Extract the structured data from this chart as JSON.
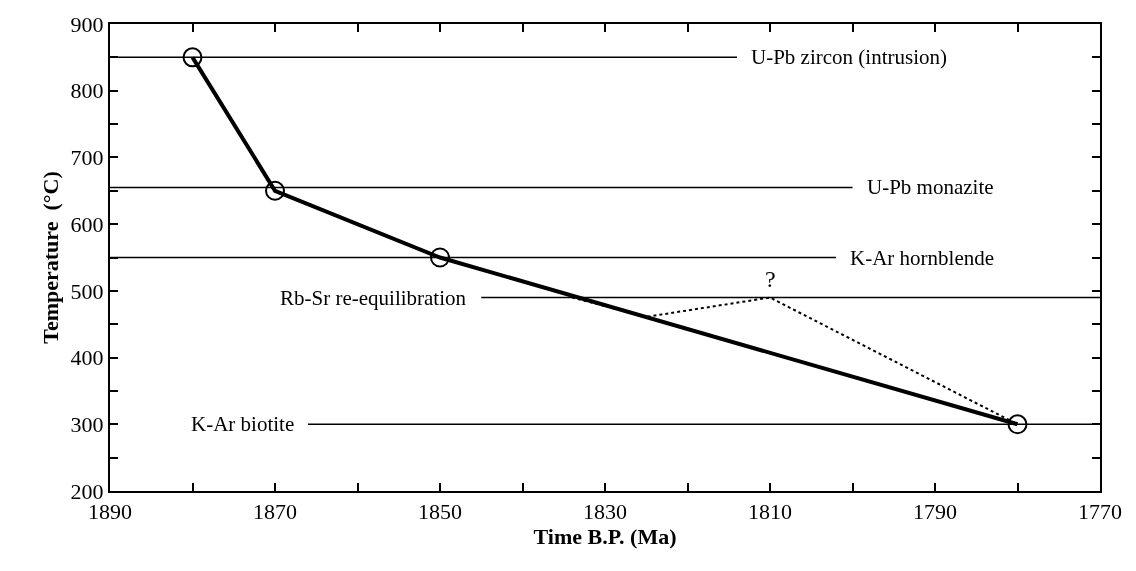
{
  "chart_data": {
    "type": "line",
    "xlabel": "Time B.P. (Ma)",
    "ylabel": "Temperature  (°C)",
    "xlim": [
      1890,
      1770
    ],
    "ylim": [
      200,
      900
    ],
    "xticks": [
      1890,
      {
        "value": 1880,
        "label": null
      },
      1870,
      {
        "value": 1860,
        "label": null
      },
      1850,
      {
        "value": 1840,
        "label": null
      },
      1830,
      {
        "value": 1820,
        "label": null
      },
      1810,
      {
        "value": 1800,
        "label": null
      },
      1790,
      {
        "value": 1780,
        "label": null
      },
      1770
    ],
    "yticks": [
      200,
      {
        "value": 250,
        "label": null
      },
      300,
      {
        "value": 350,
        "label": null
      },
      400,
      {
        "value": 450,
        "label": null
      },
      500,
      {
        "value": 550,
        "label": null
      },
      600,
      {
        "value": 650,
        "label": null
      },
      700,
      {
        "value": 750,
        "label": null
      },
      800,
      {
        "value": 850,
        "label": null
      },
      900
    ],
    "series": [
      {
        "color": "#000000",
        "x": [
          1880,
          1870,
          1850,
          1780
        ],
        "values": [
          850,
          650,
          550,
          300
        ],
        "marker": "circle",
        "line_style": "solid"
      },
      {
        "color": "#000000",
        "x": [
          1834,
          1825,
          1810,
          1780
        ],
        "values": [
          490,
          461,
          490,
          300
        ],
        "marker": "none",
        "line_style": "dotted"
      },
      {
        "color": "#000000",
        "x": [
          1890,
          1814
        ],
        "values": [
          850,
          850
        ],
        "marker": "none",
        "line_style": "solid"
      },
      {
        "color": "#000000",
        "x": [
          1890,
          1800
        ],
        "values": [
          655,
          655
        ],
        "marker": "none",
        "line_style": "solid"
      },
      {
        "color": "#000000",
        "x": [
          1890,
          1802
        ],
        "values": [
          550,
          550
        ],
        "marker": "none",
        "line_style": "solid"
      },
      {
        "color": "#000000",
        "x": [
          1845,
          1770
        ],
        "values": [
          490,
          490
        ],
        "marker": "none",
        "line_style": "solid"
      },
      {
        "color": "#000000",
        "x": [
          1866,
          1770
        ],
        "values": [
          300,
          300
        ],
        "marker": "none",
        "line_style": "solid"
      }
    ],
    "annotations": [
      {
        "text": "U-Pb zircon (intrusion)",
        "x": 1814,
        "y": 850
      },
      {
        "text": "U-Pb monazite",
        "x": 1800,
        "y": 655
      },
      {
        "text": "K-Ar hornblende",
        "x": 1802,
        "y": 550
      },
      {
        "text": "Rb-Sr re-equilibration",
        "x": 1845,
        "y": 490
      },
      {
        "text": "K-Ar biotite",
        "x": 1866,
        "y": 300
      },
      {
        "text": "?",
        "x": 1810,
        "y": 490
      }
    ]
  }
}
